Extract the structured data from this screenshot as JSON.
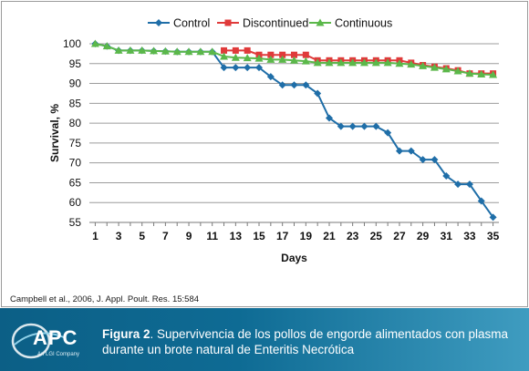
{
  "chart_data": {
    "type": "line",
    "title": "",
    "xlabel": "Days",
    "ylabel": "Survival, %",
    "ylim": [
      55,
      100
    ],
    "yticks": [
      55,
      60,
      65,
      70,
      75,
      80,
      85,
      90,
      95,
      100
    ],
    "xticks": [
      1,
      3,
      5,
      7,
      9,
      11,
      13,
      15,
      17,
      19,
      21,
      23,
      25,
      27,
      29,
      31,
      33,
      35
    ],
    "grid": true,
    "legend": "top",
    "series": [
      {
        "name": "Control",
        "color": "#1f6ea8",
        "marker": "diamond",
        "x": [
          1,
          2,
          3,
          4,
          5,
          6,
          7,
          8,
          9,
          10,
          11,
          12,
          13,
          14,
          15,
          16,
          17,
          18,
          19,
          20,
          21,
          22,
          23,
          24,
          25,
          26,
          27,
          28,
          29,
          30,
          31,
          32,
          33,
          34,
          35
        ],
        "values": [
          100,
          99.4,
          98.3,
          98.3,
          98.3,
          98.2,
          98.1,
          98.0,
          98.0,
          98.0,
          98.0,
          94.0,
          94.0,
          94.0,
          94.0,
          91.7,
          89.6,
          89.6,
          89.6,
          87.5,
          81.3,
          79.2,
          79.2,
          79.2,
          79.2,
          77.6,
          73.0,
          73.0,
          70.8,
          70.8,
          66.7,
          64.6,
          64.6,
          60.4,
          56.3
        ]
      },
      {
        "name": "Discontinued",
        "color": "#e03a3a",
        "marker": "square",
        "x": [
          12,
          13,
          14,
          15,
          16,
          17,
          18,
          19,
          20,
          21,
          22,
          23,
          24,
          25,
          26,
          27,
          28,
          29,
          30,
          31,
          32,
          33,
          34,
          35
        ],
        "values": [
          98.3,
          98.3,
          98.3,
          97.2,
          97.2,
          97.2,
          97.2,
          97.2,
          95.8,
          95.8,
          95.8,
          95.8,
          95.8,
          95.8,
          95.8,
          95.8,
          95.2,
          94.6,
          94.2,
          93.8,
          93.3,
          92.5,
          92.5,
          92.5
        ]
      },
      {
        "name": "Continuous",
        "color": "#5bb84a",
        "marker": "triangle",
        "x": [
          1,
          2,
          3,
          4,
          5,
          6,
          7,
          8,
          9,
          10,
          11,
          12,
          13,
          14,
          15,
          16,
          17,
          18,
          19,
          20,
          21,
          22,
          23,
          24,
          25,
          26,
          27,
          28,
          29,
          30,
          31,
          32,
          33,
          34,
          35
        ],
        "values": [
          100,
          99.4,
          98.3,
          98.3,
          98.3,
          98.2,
          98.1,
          98.0,
          98.0,
          98.0,
          98.0,
          96.8,
          96.5,
          96.4,
          96.3,
          96.0,
          96.0,
          95.8,
          95.6,
          95.2,
          95.2,
          95.2,
          95.2,
          95.2,
          95.2,
          95.2,
          95.0,
          94.8,
          94.4,
          94.0,
          93.6,
          93.1,
          92.5,
          92.3,
          92.2
        ]
      }
    ]
  },
  "source": "Campbell et al., 2006,  J. Appl. Poult. Res. 15:584",
  "banner": {
    "logo_text": "APC",
    "logo_sub": "An LGI Company",
    "figure_label": "Figura 2",
    "caption": ". Supervivencia de los pollos de engorde alimentados con plasma durante un brote natural de Enteritis Necrótica",
    "background_color": "#0e6b94"
  }
}
